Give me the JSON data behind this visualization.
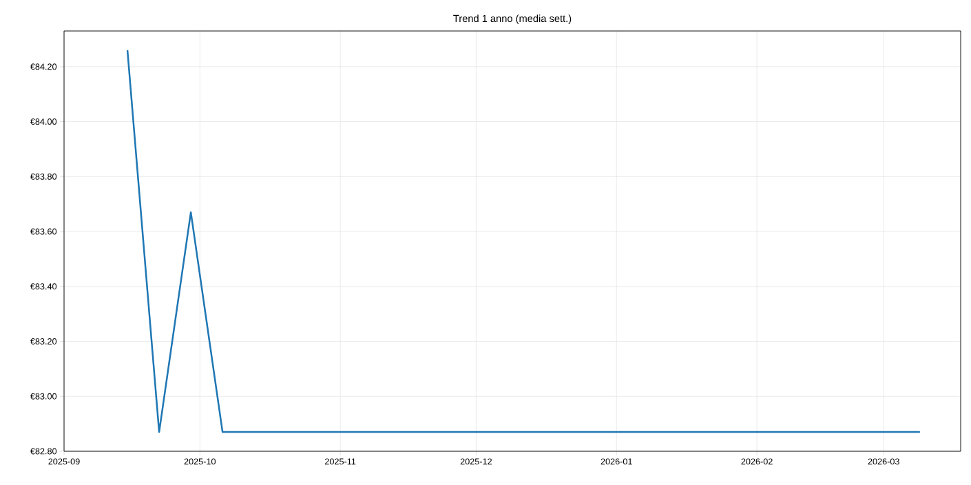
{
  "chart_data": {
    "type": "line",
    "title": "Trend 1 anno (media sett.)",
    "x": [
      "2025-09-15",
      "2025-09-22",
      "2025-09-29",
      "2025-10-06",
      "2025-10-13",
      "2025-10-20",
      "2025-10-27",
      "2025-11-03",
      "2025-11-10",
      "2025-11-17",
      "2025-11-24",
      "2025-12-01",
      "2025-12-08",
      "2025-12-15",
      "2025-12-22",
      "2025-12-29",
      "2026-01-05",
      "2026-01-12",
      "2026-01-19",
      "2026-01-26",
      "2026-02-02",
      "2026-02-09",
      "2026-02-16",
      "2026-02-23",
      "2026-03-02",
      "2026-03-09"
    ],
    "series": [
      {
        "color": "#1f77b4",
        "values": [
          84.26,
          82.87,
          83.67,
          82.87,
          82.87,
          82.87,
          82.87,
          82.87,
          82.87,
          82.87,
          82.87,
          82.87,
          82.87,
          82.87,
          82.87,
          82.87,
          82.87,
          82.87,
          82.87,
          82.87,
          82.87,
          82.87,
          82.87,
          82.87,
          82.87,
          82.87
        ]
      }
    ],
    "xlim": [
      "2025-09-01",
      "2026-03-18"
    ],
    "xticks": [
      {
        "value": "2025-09-01",
        "label": "2025-09"
      },
      {
        "value": "2025-10-01",
        "label": "2025-10"
      },
      {
        "value": "2025-11-01",
        "label": "2025-11"
      },
      {
        "value": "2025-12-01",
        "label": "2025-12"
      },
      {
        "value": "2026-01-01",
        "label": "2026-01"
      },
      {
        "value": "2026-02-01",
        "label": "2026-02"
      },
      {
        "value": "2026-03-01",
        "label": "2026-03"
      }
    ],
    "ylim": [
      82.8,
      84.33
    ],
    "yticks": [
      {
        "value": 82.8,
        "label": "€82.80"
      },
      {
        "value": 83.0,
        "label": "€83.00"
      },
      {
        "value": 83.2,
        "label": "€83.20"
      },
      {
        "value": 83.4,
        "label": "€83.40"
      },
      {
        "value": 83.6,
        "label": "€83.60"
      },
      {
        "value": 83.8,
        "label": "€83.80"
      },
      {
        "value": 84.0,
        "label": "€84.00"
      },
      {
        "value": 84.2,
        "label": "€84.20"
      }
    ],
    "grid": true,
    "marker": "none",
    "line_style": "solid"
  }
}
